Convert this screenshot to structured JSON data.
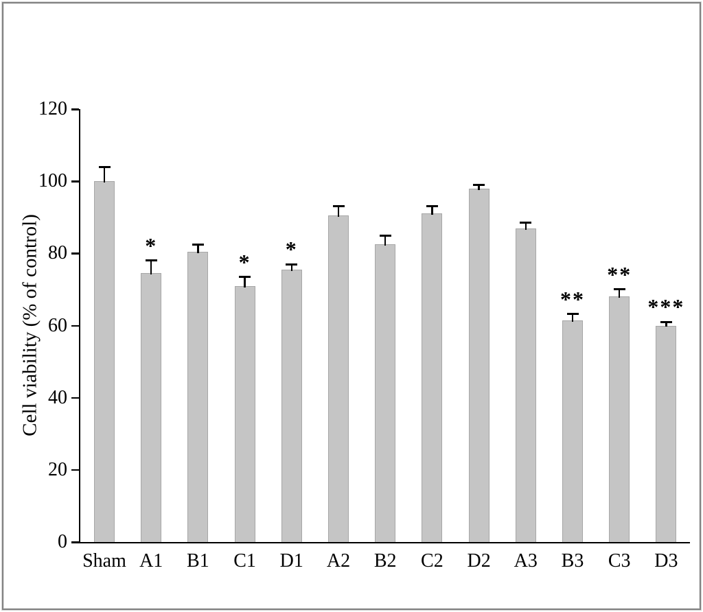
{
  "frame": {
    "border_color": "#828282"
  },
  "chart_data": {
    "type": "bar",
    "title": "",
    "xlabel": "",
    "ylabel": "Cell viability (% of control)",
    "ylim": [
      0,
      120
    ],
    "yticks": [
      0,
      20,
      40,
      60,
      80,
      100,
      120
    ],
    "grid": false,
    "legend": "none",
    "categories": [
      "Sham",
      "A1",
      "B1",
      "C1",
      "D1",
      "A2",
      "B2",
      "C2",
      "D2",
      "A3",
      "B3",
      "C3",
      "D3"
    ],
    "values": [
      100,
      74.5,
      80.5,
      71,
      75.5,
      90.5,
      82.5,
      91,
      98,
      87,
      61.5,
      68,
      60
    ],
    "errors": [
      4,
      3.5,
      2,
      2.5,
      1.5,
      2.5,
      2.5,
      2,
      1,
      1.5,
      1.7,
      2,
      1
    ],
    "significance": [
      "",
      "*",
      "",
      "*",
      "*",
      "",
      "",
      "",
      "",
      "",
      "**",
      "**",
      "***"
    ],
    "bar_color": "#c5c5c5",
    "bar_border_color": "#a6a6a6",
    "error_bar_color": "#000000",
    "axis_color": "#000000"
  }
}
